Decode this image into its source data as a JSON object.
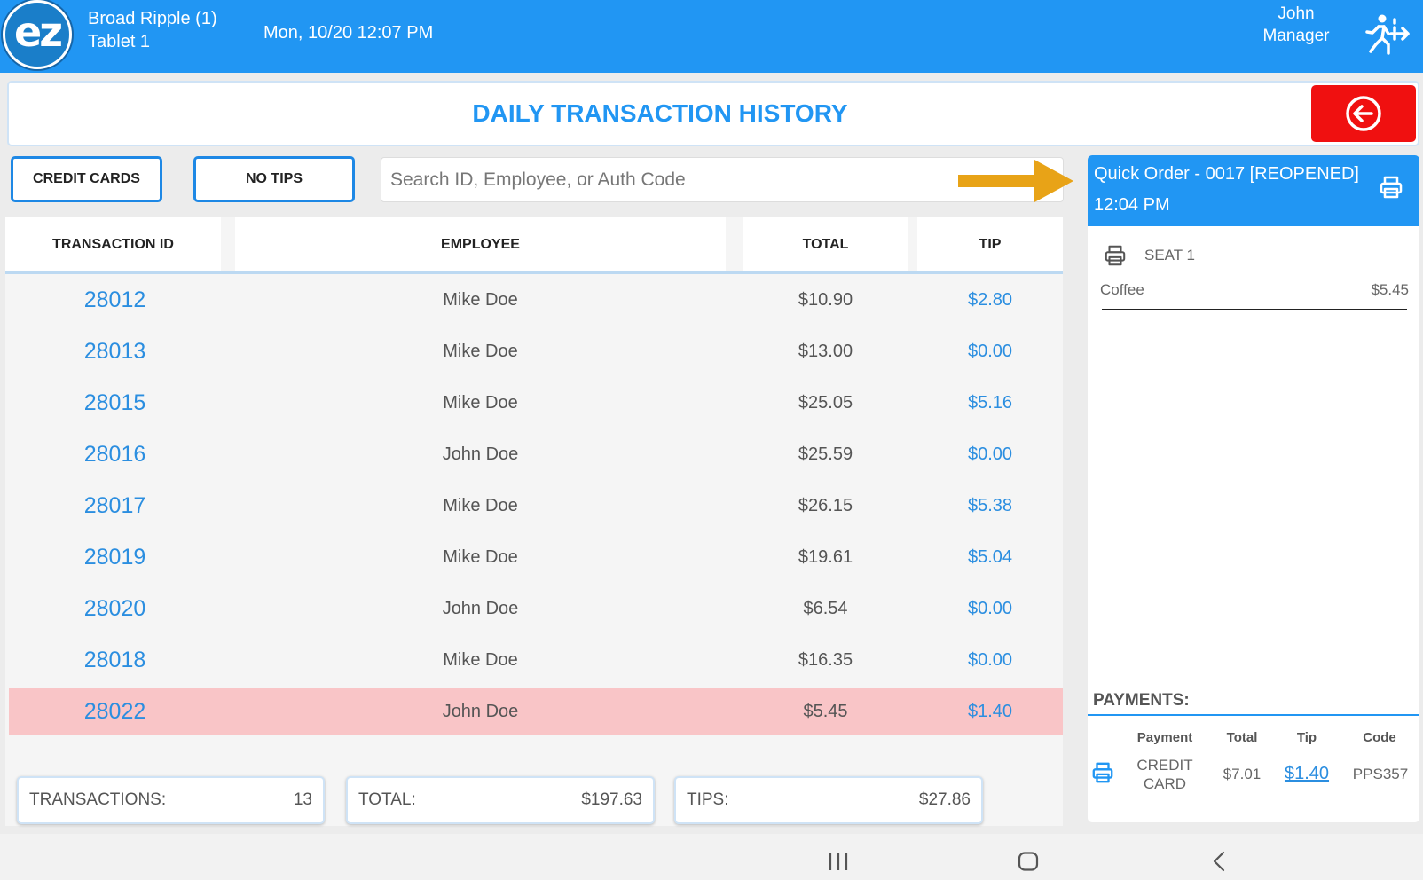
{
  "header": {
    "logo_text": "ez",
    "store_name": "Broad Ripple (1)",
    "device": "Tablet 1",
    "datetime": "Mon, 10/20 12:07 PM",
    "user_name": "John",
    "user_role": "Manager",
    "brand_color": "#2196f3"
  },
  "title": "DAILY TRANSACTION HISTORY",
  "filters": {
    "credit_cards_label": "CREDIT CARDS",
    "no_tips_label": "NO TIPS"
  },
  "search": {
    "placeholder": "Search ID, Employee, or Auth Code"
  },
  "table": {
    "columns": [
      "TRANSACTION ID",
      "EMPLOYEE",
      "TOTAL",
      "TIP"
    ],
    "rows": [
      {
        "id": "28012",
        "employee": "Mike Doe",
        "total": "$10.90",
        "tip": "$2.80"
      },
      {
        "id": "28013",
        "employee": "Mike Doe",
        "total": "$13.00",
        "tip": "$0.00"
      },
      {
        "id": "28015",
        "employee": "Mike Doe",
        "total": "$25.05",
        "tip": "$5.16"
      },
      {
        "id": "28016",
        "employee": "John Doe",
        "total": "$25.59",
        "tip": "$0.00"
      },
      {
        "id": "28017",
        "employee": "Mike Doe",
        "total": "$26.15",
        "tip": "$5.38"
      },
      {
        "id": "28019",
        "employee": "Mike Doe",
        "total": "$19.61",
        "tip": "$5.04"
      },
      {
        "id": "28020",
        "employee": "John Doe",
        "total": "$6.54",
        "tip": "$0.00"
      },
      {
        "id": "28018",
        "employee": "Mike Doe",
        "total": "$16.35",
        "tip": "$0.00"
      },
      {
        "id": "28022",
        "employee": "John Doe",
        "total": "$5.45",
        "tip": "$1.40"
      }
    ],
    "selected_row": 8,
    "selected_color": "#f9c5c7"
  },
  "summary": {
    "transactions_label": "TRANSACTIONS:",
    "transactions_value": "13",
    "total_label": "TOTAL:",
    "total_value": "$197.63",
    "tips_label": "TIPS:",
    "tips_value": "$27.86"
  },
  "order_panel": {
    "title": "Quick Order - 0017 [REOPENED]",
    "time": "12:04 PM",
    "seat_label": "SEAT 1",
    "item_name": "Coffee",
    "item_price": "$5.45",
    "payments_label": "PAYMENTS:",
    "payment_headers": {
      "payment": "Payment",
      "total": "Total",
      "tip": "Tip",
      "code": "Code"
    },
    "payment": {
      "type_line1": "CREDIT",
      "type_line2": "CARD",
      "total": "$7.01",
      "tip": "$1.40",
      "code": "PPS357"
    }
  },
  "icons": {
    "logout": "exit-run-icon",
    "back": "back-arrow-circle-icon",
    "printer": "printer-icon",
    "annotation": "annotation-arrow-icon"
  },
  "accent_colors": {
    "annotation_arrow": "#e8a317",
    "back_button": "#f01010"
  }
}
